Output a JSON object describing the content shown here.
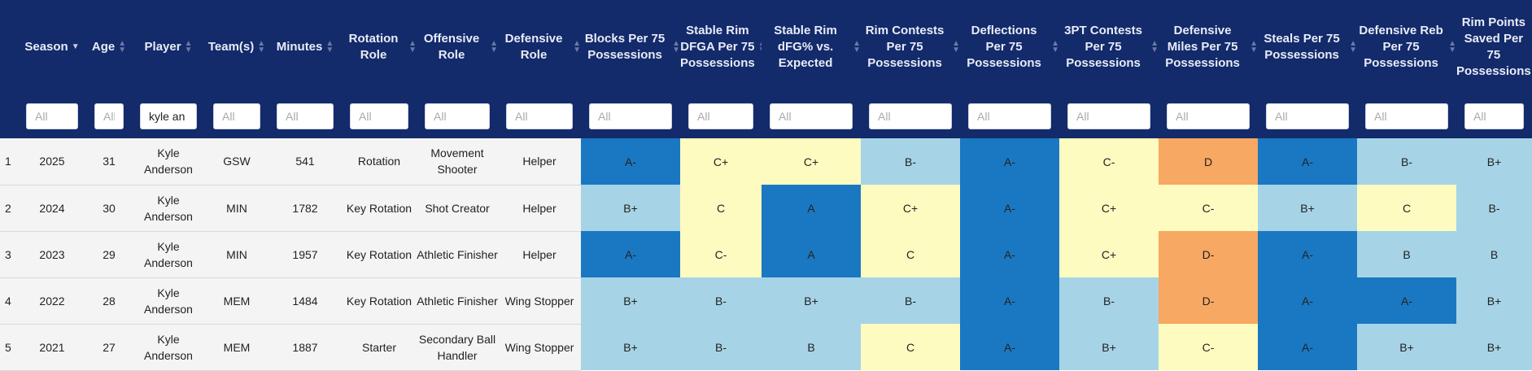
{
  "colors": {
    "header_bg": "#132a6b",
    "grade_dark_blue": "#1a78c2",
    "grade_light_blue": "#a6d4e6",
    "grade_light_yellow": "#fefbc0",
    "grade_orange": "#f7a862"
  },
  "table": {
    "columns": [
      {
        "label": "Season",
        "filter_placeholder": "All",
        "filter_value": ""
      },
      {
        "label": "Age",
        "filter_placeholder": "All",
        "filter_value": ""
      },
      {
        "label": "Player",
        "filter_placeholder": "All",
        "filter_value": "kyle an"
      },
      {
        "label": "Team(s)",
        "filter_placeholder": "All",
        "filter_value": ""
      },
      {
        "label": "Minutes",
        "filter_placeholder": "All",
        "filter_value": ""
      },
      {
        "label": "Rotation Role",
        "filter_placeholder": "All",
        "filter_value": ""
      },
      {
        "label": "Offensive Role",
        "filter_placeholder": "All",
        "filter_value": ""
      },
      {
        "label": "Defensive Role",
        "filter_placeholder": "All",
        "filter_value": ""
      },
      {
        "label": "Blocks Per 75 Possessions",
        "filter_placeholder": "All",
        "filter_value": ""
      },
      {
        "label": "Stable Rim DFGA Per 75 Possessions",
        "filter_placeholder": "All",
        "filter_value": ""
      },
      {
        "label": "Stable Rim dFG% vs. Expected",
        "filter_placeholder": "All",
        "filter_value": ""
      },
      {
        "label": "Rim Contests Per 75 Possessions",
        "filter_placeholder": "All",
        "filter_value": ""
      },
      {
        "label": "Deflections Per 75 Possessions",
        "filter_placeholder": "All",
        "filter_value": ""
      },
      {
        "label": "3PT Contests Per 75 Possessions",
        "filter_placeholder": "All",
        "filter_value": ""
      },
      {
        "label": "Defensive Miles Per 75 Possessions",
        "filter_placeholder": "All",
        "filter_value": ""
      },
      {
        "label": "Steals Per 75 Possessions",
        "filter_placeholder": "All",
        "filter_value": ""
      },
      {
        "label": "Defensive Reb Per 75 Possessions",
        "filter_placeholder": "All",
        "filter_value": ""
      },
      {
        "label": "Rim Points Saved Per 75 Possessions",
        "filter_placeholder": "All",
        "filter_value": ""
      }
    ],
    "rows": [
      {
        "index": "1",
        "season": "2025",
        "age": "31",
        "player": "Kyle Anderson",
        "team": "GSW",
        "minutes": "541",
        "rotation_role": "Rotation",
        "offensive_role": "Movement Shooter",
        "defensive_role": "Helper",
        "grades": [
          "A-",
          "C+",
          "C+",
          "B-",
          "A-",
          "C-",
          "D",
          "A-",
          "B-",
          "B+"
        ],
        "grade_colors": [
          "#1a78c2",
          "#fefbc0",
          "#fefbc0",
          "#a6d4e6",
          "#1a78c2",
          "#fefbc0",
          "#f7a862",
          "#1a78c2",
          "#a6d4e6",
          "#a6d4e6"
        ]
      },
      {
        "index": "2",
        "season": "2024",
        "age": "30",
        "player": "Kyle Anderson",
        "team": "MIN",
        "minutes": "1782",
        "rotation_role": "Key Rotation",
        "offensive_role": "Shot Creator",
        "defensive_role": "Helper",
        "grades": [
          "B+",
          "C",
          "A",
          "C+",
          "A-",
          "C+",
          "C-",
          "B+",
          "C",
          "B-"
        ],
        "grade_colors": [
          "#a6d4e6",
          "#fefbc0",
          "#1a78c2",
          "#fefbc0",
          "#1a78c2",
          "#fefbc0",
          "#fefbc0",
          "#a6d4e6",
          "#fefbc0",
          "#a6d4e6"
        ]
      },
      {
        "index": "3",
        "season": "2023",
        "age": "29",
        "player": "Kyle Anderson",
        "team": "MIN",
        "minutes": "1957",
        "rotation_role": "Key Rotation",
        "offensive_role": "Athletic Finisher",
        "defensive_role": "Helper",
        "grades": [
          "A-",
          "C-",
          "A",
          "C",
          "A-",
          "C+",
          "D-",
          "A-",
          "B",
          "B"
        ],
        "grade_colors": [
          "#1a78c2",
          "#fefbc0",
          "#1a78c2",
          "#fefbc0",
          "#1a78c2",
          "#fefbc0",
          "#f7a862",
          "#1a78c2",
          "#a6d4e6",
          "#a6d4e6"
        ]
      },
      {
        "index": "4",
        "season": "2022",
        "age": "28",
        "player": "Kyle Anderson",
        "team": "MEM",
        "minutes": "1484",
        "rotation_role": "Key Rotation",
        "offensive_role": "Athletic Finisher",
        "defensive_role": "Wing Stopper",
        "grades": [
          "B+",
          "B-",
          "B+",
          "B-",
          "A-",
          "B-",
          "D-",
          "A-",
          "A-",
          "B+"
        ],
        "grade_colors": [
          "#a6d4e6",
          "#a6d4e6",
          "#a6d4e6",
          "#a6d4e6",
          "#1a78c2",
          "#a6d4e6",
          "#f7a862",
          "#1a78c2",
          "#1a78c2",
          "#a6d4e6"
        ]
      },
      {
        "index": "5",
        "season": "2021",
        "age": "27",
        "player": "Kyle Anderson",
        "team": "MEM",
        "minutes": "1887",
        "rotation_role": "Starter",
        "offensive_role": "Secondary Ball Handler",
        "defensive_role": "Wing Stopper",
        "grades": [
          "B+",
          "B-",
          "B",
          "C",
          "A-",
          "B+",
          "C-",
          "A-",
          "B+",
          "B+"
        ],
        "grade_colors": [
          "#a6d4e6",
          "#a6d4e6",
          "#a6d4e6",
          "#fefbc0",
          "#1a78c2",
          "#a6d4e6",
          "#fefbc0",
          "#1a78c2",
          "#a6d4e6",
          "#a6d4e6"
        ]
      }
    ]
  }
}
